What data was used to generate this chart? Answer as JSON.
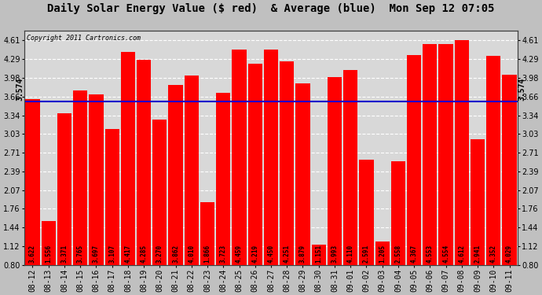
{
  "title": "Daily Solar Energy Value ($ red)  & Average (blue)  Mon Sep 12 07:05",
  "copyright": "Copyright 2011 Cartronics.com",
  "categories": [
    "08-12",
    "08-13",
    "08-14",
    "08-15",
    "08-16",
    "08-17",
    "08-18",
    "08-19",
    "08-20",
    "08-21",
    "08-22",
    "08-23",
    "08-24",
    "08-25",
    "08-26",
    "08-27",
    "08-28",
    "08-29",
    "08-30",
    "08-31",
    "09-01",
    "09-02",
    "09-03",
    "09-04",
    "09-05",
    "09-06",
    "09-07",
    "09-08",
    "09-09",
    "09-10",
    "09-11"
  ],
  "values": [
    3.622,
    1.556,
    3.371,
    3.765,
    3.697,
    3.107,
    4.417,
    4.285,
    3.27,
    3.862,
    4.01,
    1.866,
    3.723,
    4.459,
    4.219,
    4.45,
    4.251,
    3.879,
    1.151,
    3.993,
    4.11,
    2.591,
    1.205,
    2.558,
    4.367,
    4.553,
    4.554,
    4.612,
    2.941,
    4.352,
    4.029
  ],
  "average": 3.574,
  "average_label": "3.574",
  "bar_color": "#ff0000",
  "average_line_color": "#0000cc",
  "plot_bg_color": "#d8d8d8",
  "outer_bg_color": "#c0c0c0",
  "ylim_min": 0.8,
  "ylim_max": 4.77,
  "yticks": [
    0.8,
    1.12,
    1.44,
    1.76,
    2.07,
    2.39,
    2.71,
    3.03,
    3.34,
    3.66,
    3.98,
    4.29,
    4.61
  ],
  "title_fontsize": 10,
  "tick_fontsize": 7,
  "bar_label_fontsize": 5.5,
  "avg_label_fontsize": 7,
  "copyright_fontsize": 6
}
